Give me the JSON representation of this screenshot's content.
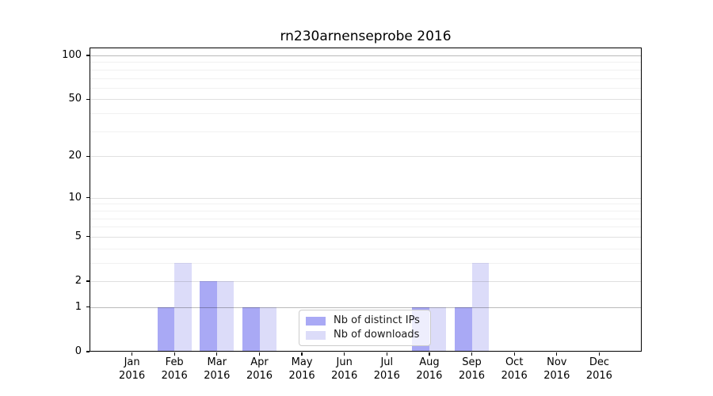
{
  "chart_data": {
    "type": "bar",
    "title": "rn230arnenseprobe 2016",
    "categories": [
      "Jan",
      "Feb",
      "Mar",
      "Apr",
      "May",
      "Jun",
      "Jul",
      "Aug",
      "Sep",
      "Oct",
      "Nov",
      "Dec"
    ],
    "year_label": "2016",
    "series": [
      {
        "name": "Nb of distinct IPs",
        "color": "#a9a9f5",
        "values": [
          0,
          1,
          2,
          1,
          0,
          0,
          0,
          1,
          1,
          0,
          0,
          0
        ]
      },
      {
        "name": "Nb of downloads",
        "color": "#dcdcf9",
        "values": [
          0,
          3,
          2,
          1,
          0,
          0,
          0,
          1,
          3,
          0,
          0,
          0
        ]
      }
    ],
    "yscale": "log10(1+y)",
    "ylim": [
      0,
      115
    ],
    "y_ticks": [
      100,
      50,
      20,
      10,
      5,
      2,
      1,
      0
    ],
    "y_minor_ticks": [
      3,
      4,
      6,
      7,
      8,
      9,
      30,
      40,
      60,
      70,
      80,
      90
    ],
    "y_emphasis_lines": [
      1,
      100
    ],
    "grid": "horizontal",
    "legend_position": "lower center-right inside plot",
    "colors": {
      "bar_distinct_ips": "#a9a9f5",
      "bar_downloads": "#dcdcf9",
      "grid_major_rgba": "rgba(0,0,0,0.12)",
      "grid_minor_rgba": "rgba(0,0,0,0.055)",
      "grid_emphasis_rgba": "rgba(0,0,0,0.27)",
      "axis": "#000000",
      "text": "#000000",
      "background": "#ffffff"
    }
  }
}
